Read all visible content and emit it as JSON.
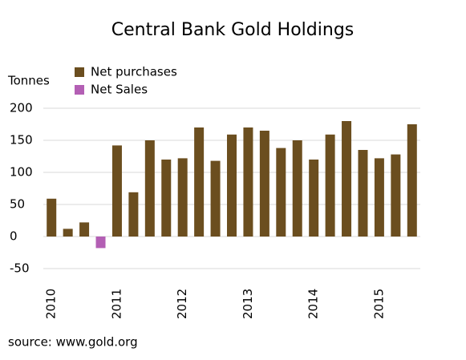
{
  "chart_data": {
    "type": "bar",
    "title": "Central Bank Gold Holdings",
    "y_label": "Tonnes",
    "source": "source: www.gold.org",
    "categories": [
      "2010",
      null,
      null,
      null,
      "2011",
      null,
      null,
      null,
      "2012",
      null,
      null,
      null,
      "2013",
      null,
      null,
      null,
      "2014",
      null,
      null,
      null,
      "2015",
      null,
      null
    ],
    "series": [
      {
        "name": "Net purchases",
        "color": "#6b4e1f",
        "values": [
          59,
          12,
          22,
          null,
          142,
          69,
          150,
          120,
          122,
          170,
          118,
          159,
          170,
          165,
          138,
          150,
          120,
          159,
          180,
          135,
          122,
          128,
          175
        ]
      },
      {
        "name": "Net Sales",
        "color": "#b35fb4",
        "values": [
          null,
          null,
          null,
          -18,
          null,
          null,
          null,
          null,
          null,
          null,
          null,
          null,
          null,
          null,
          null,
          null,
          null,
          null,
          null,
          null,
          null,
          null,
          null
        ]
      }
    ],
    "ylim": [
      -50,
      200
    ],
    "yticks": [
      -50,
      0,
      50,
      100,
      150,
      200
    ],
    "grid": true
  }
}
